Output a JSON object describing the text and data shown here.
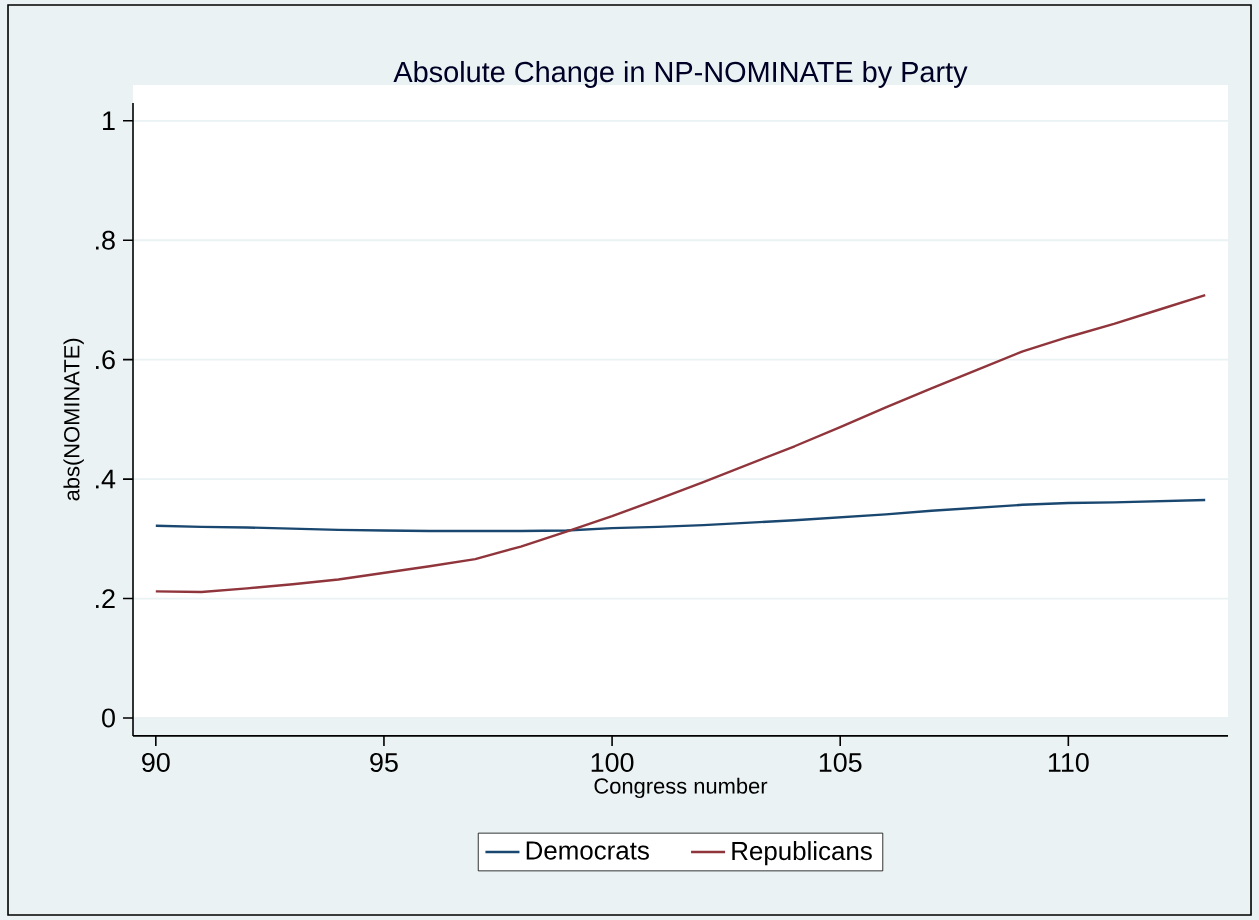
{
  "chart_data": {
    "type": "line",
    "title": "Absolute Change in NP-NOMINATE by Party",
    "xlabel": "Congress number",
    "ylabel": "abs(NOMINATE)",
    "x": [
      90,
      91,
      92,
      93,
      94,
      95,
      96,
      97,
      98,
      99,
      100,
      101,
      102,
      103,
      104,
      105,
      106,
      107,
      108,
      109,
      110,
      111,
      112,
      113
    ],
    "series": [
      {
        "name": "Democrats",
        "color": "#1a476f",
        "values": [
          0.322,
          0.32,
          0.319,
          0.317,
          0.315,
          0.314,
          0.313,
          0.313,
          0.313,
          0.314,
          0.318,
          0.32,
          0.323,
          0.327,
          0.331,
          0.336,
          0.341,
          0.347,
          0.352,
          0.357,
          0.36,
          0.361,
          0.363,
          0.365
        ]
      },
      {
        "name": "Republicans",
        "color": "#90353b",
        "values": [
          0.212,
          0.211,
          0.217,
          0.224,
          0.232,
          0.243,
          0.254,
          0.266,
          0.287,
          0.312,
          0.338,
          0.366,
          0.395,
          0.425,
          0.455,
          0.487,
          0.52,
          0.552,
          0.583,
          0.614,
          0.638,
          0.66,
          0.684,
          0.708
        ]
      }
    ],
    "xlim": [
      89.5,
      113.5
    ],
    "ylim": [
      -0.03,
      1.03
    ],
    "xticks": [
      90,
      95,
      100,
      105,
      110
    ],
    "yticks": [
      0,
      {
        "value": 0.2,
        "label": ".2"
      },
      {
        "value": 0.4,
        "label": ".4"
      },
      {
        "value": 0.6,
        "label": ".6"
      },
      {
        "value": 0.8,
        "label": ".8"
      },
      1
    ],
    "grid": "y",
    "legend": "bottom"
  }
}
